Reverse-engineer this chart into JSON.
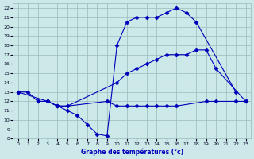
{
  "title": "Graphe des températures (°c)",
  "background_color": "#cce8e8",
  "grid_color": "#99bbbb",
  "line_color": "#0000bb",
  "xlim": [
    -0.5,
    23.5
  ],
  "ylim": [
    8,
    22.5
  ],
  "xticks": [
    0,
    1,
    2,
    3,
    4,
    5,
    6,
    7,
    8,
    9,
    10,
    11,
    12,
    13,
    14,
    15,
    16,
    17,
    18,
    19,
    20,
    21,
    22,
    23
  ],
  "yticks": [
    8,
    9,
    10,
    11,
    12,
    13,
    14,
    15,
    16,
    17,
    18,
    19,
    20,
    21,
    22
  ],
  "series": [
    {
      "x": [
        0,
        1,
        2,
        3,
        4,
        5,
        6,
        7,
        8,
        9,
        10,
        11,
        12,
        13,
        14,
        15,
        16,
        17,
        18,
        22
      ],
      "y": [
        13,
        13,
        12,
        12,
        11.5,
        11,
        10.5,
        9.5,
        8.5,
        8.3,
        18,
        20.5,
        21,
        21,
        21,
        21.5,
        22,
        21.5,
        20.5,
        13
      ]
    },
    {
      "x": [
        0,
        3,
        4,
        5,
        10,
        11,
        12,
        13,
        14,
        15,
        16,
        17,
        18,
        19,
        20,
        23
      ],
      "y": [
        13,
        12,
        11.5,
        11.5,
        14,
        15,
        15.5,
        16,
        16.5,
        17,
        17,
        17,
        17.5,
        17.5,
        15.5,
        12
      ]
    },
    {
      "x": [
        2,
        3,
        4,
        5,
        9,
        10,
        11,
        12,
        13,
        14,
        15,
        16,
        19,
        20,
        22,
        23
      ],
      "y": [
        12,
        12,
        11.5,
        11.5,
        12,
        11.5,
        11.5,
        11.5,
        11.5,
        11.5,
        11.5,
        11.5,
        12,
        12,
        12,
        12
      ]
    }
  ]
}
